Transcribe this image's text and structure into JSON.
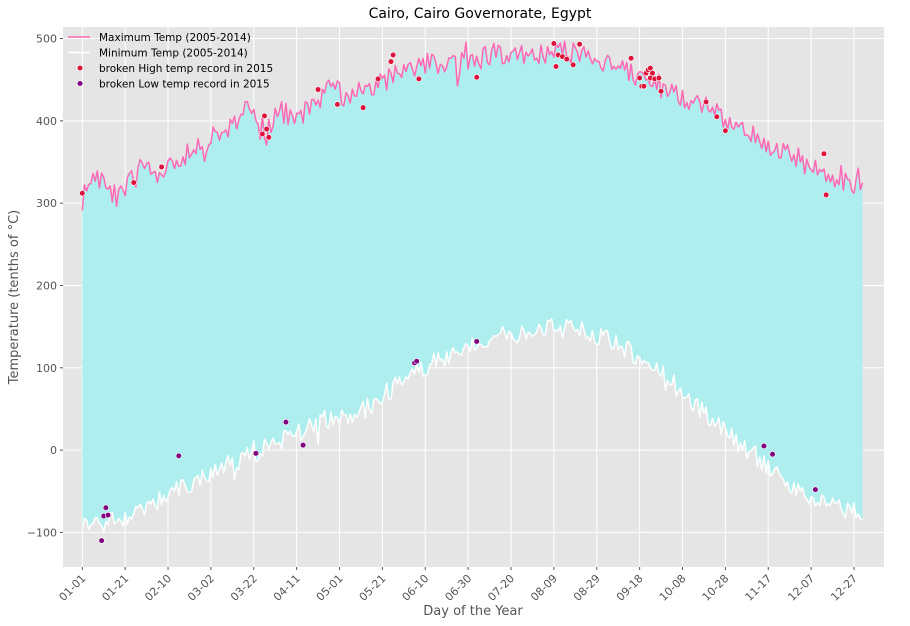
{
  "chart_data": {
    "type": "line",
    "title": "Cairo, Cairo Governorate, Egypt",
    "xlabel": "Day of the Year",
    "ylabel": "Temperature (tenths of $^\\circ$C)",
    "ylabel_display": "Temperature (tenths of °C)",
    "xlim": [
      -9,
      374
    ],
    "ylim": [
      -142,
      514
    ],
    "yticks": [
      -100,
      0,
      100,
      200,
      300,
      400,
      500
    ],
    "xtick_labels": [
      "01-01",
      "01-21",
      "02-10",
      "03-02",
      "03-22",
      "04-11",
      "05-01",
      "05-21",
      "06-10",
      "06-30",
      "07-20",
      "08-09",
      "08-29",
      "09-18",
      "10-08",
      "10-28",
      "11-17",
      "12-07",
      "12-27"
    ],
    "xtick_days": [
      0,
      20,
      40,
      60,
      80,
      100,
      120,
      140,
      160,
      180,
      200,
      220,
      240,
      260,
      280,
      300,
      320,
      340,
      360
    ],
    "grid": true,
    "legend_position": "top-left",
    "fill_between_color": "#aeeeee",
    "background": "#e5e5e5",
    "series": [
      {
        "name": "Maximum Temp (2005-2014)",
        "kind": "line",
        "color": "#ff69b4",
        "knots": [
          [
            0,
            305
          ],
          [
            4,
            330
          ],
          [
            10,
            330
          ],
          [
            14,
            315
          ],
          [
            18,
            300
          ],
          [
            22,
            330
          ],
          [
            30,
            338
          ],
          [
            38,
            335
          ],
          [
            45,
            350
          ],
          [
            55,
            372
          ],
          [
            62,
            380
          ],
          [
            70,
            395
          ],
          [
            78,
            420
          ],
          [
            85,
            380
          ],
          [
            92,
            410
          ],
          [
            100,
            405
          ],
          [
            108,
            420
          ],
          [
            115,
            438
          ],
          [
            125,
            430
          ],
          [
            132,
            440
          ],
          [
            140,
            445
          ],
          [
            150,
            460
          ],
          [
            160,
            470
          ],
          [
            170,
            472
          ],
          [
            180,
            470
          ],
          [
            190,
            480
          ],
          [
            200,
            482
          ],
          [
            210,
            478
          ],
          [
            220,
            485
          ],
          [
            230,
            482
          ],
          [
            240,
            475
          ],
          [
            250,
            466
          ],
          [
            260,
            452
          ],
          [
            270,
            442
          ],
          [
            280,
            430
          ],
          [
            290,
            418
          ],
          [
            300,
            400
          ],
          [
            310,
            385
          ],
          [
            320,
            370
          ],
          [
            330,
            360
          ],
          [
            340,
            345
          ],
          [
            350,
            330
          ],
          [
            360,
            325
          ],
          [
            364,
            338
          ]
        ],
        "noise": 14
      },
      {
        "name": "Minimum Temp (2005-2014)",
        "kind": "line",
        "color": "#ffffff",
        "knots": [
          [
            0,
            -85
          ],
          [
            10,
            -90
          ],
          [
            20,
            -80
          ],
          [
            30,
            -70
          ],
          [
            40,
            -55
          ],
          [
            50,
            -40
          ],
          [
            60,
            -30
          ],
          [
            70,
            -15
          ],
          [
            80,
            -5
          ],
          [
            90,
            10
          ],
          [
            100,
            20
          ],
          [
            110,
            35
          ],
          [
            120,
            40
          ],
          [
            130,
            45
          ],
          [
            140,
            65
          ],
          [
            150,
            85
          ],
          [
            160,
            100
          ],
          [
            170,
            115
          ],
          [
            180,
            128
          ],
          [
            190,
            135
          ],
          [
            200,
            140
          ],
          [
            210,
            145
          ],
          [
            220,
            150
          ],
          [
            230,
            145
          ],
          [
            240,
            140
          ],
          [
            250,
            128
          ],
          [
            260,
            112
          ],
          [
            270,
            95
          ],
          [
            280,
            70
          ],
          [
            290,
            45
          ],
          [
            300,
            25
          ],
          [
            310,
            0
          ],
          [
            320,
            -20
          ],
          [
            330,
            -40
          ],
          [
            340,
            -55
          ],
          [
            350,
            -65
          ],
          [
            360,
            -75
          ],
          [
            364,
            -88
          ]
        ],
        "noise": 12
      },
      {
        "name": " broken High temp record in 2015",
        "kind": "scatter",
        "color": "#dc143c",
        "points": [
          [
            0,
            312
          ],
          [
            24,
            325
          ],
          [
            37,
            344
          ],
          [
            85,
            406
          ],
          [
            86,
            390
          ],
          [
            87,
            380
          ],
          [
            84,
            384
          ],
          [
            110,
            438
          ],
          [
            119,
            420
          ],
          [
            131,
            416
          ],
          [
            138,
            451
          ],
          [
            144,
            472
          ],
          [
            145,
            480
          ],
          [
            157,
            451
          ],
          [
            184,
            453
          ],
          [
            220,
            494
          ],
          [
            221,
            466
          ],
          [
            222,
            480
          ],
          [
            224,
            478
          ],
          [
            226,
            475
          ],
          [
            229,
            468
          ],
          [
            232,
            493
          ],
          [
            256,
            476
          ],
          [
            260,
            452
          ],
          [
            261,
            442
          ],
          [
            262,
            442
          ],
          [
            263,
            458
          ],
          [
            264,
            462
          ],
          [
            265,
            464
          ],
          [
            265,
            452
          ],
          [
            266,
            458
          ],
          [
            267,
            451
          ],
          [
            269,
            452
          ],
          [
            270,
            436
          ],
          [
            291,
            423
          ],
          [
            296,
            405
          ],
          [
            300,
            388
          ],
          [
            346,
            360
          ],
          [
            347,
            310
          ]
        ]
      },
      {
        "name": "broken Low temp record in 2015",
        "kind": "scatter",
        "color": "#800080",
        "points": [
          [
            9,
            -110
          ],
          [
            10,
            -80
          ],
          [
            11,
            -70
          ],
          [
            12,
            -79
          ],
          [
            45,
            -7
          ],
          [
            81,
            -4
          ],
          [
            95,
            34
          ],
          [
            103,
            6
          ],
          [
            155,
            106
          ],
          [
            156,
            108
          ],
          [
            184,
            132
          ],
          [
            318,
            5
          ],
          [
            322,
            -5
          ],
          [
            342,
            -48
          ]
        ]
      }
    ]
  }
}
